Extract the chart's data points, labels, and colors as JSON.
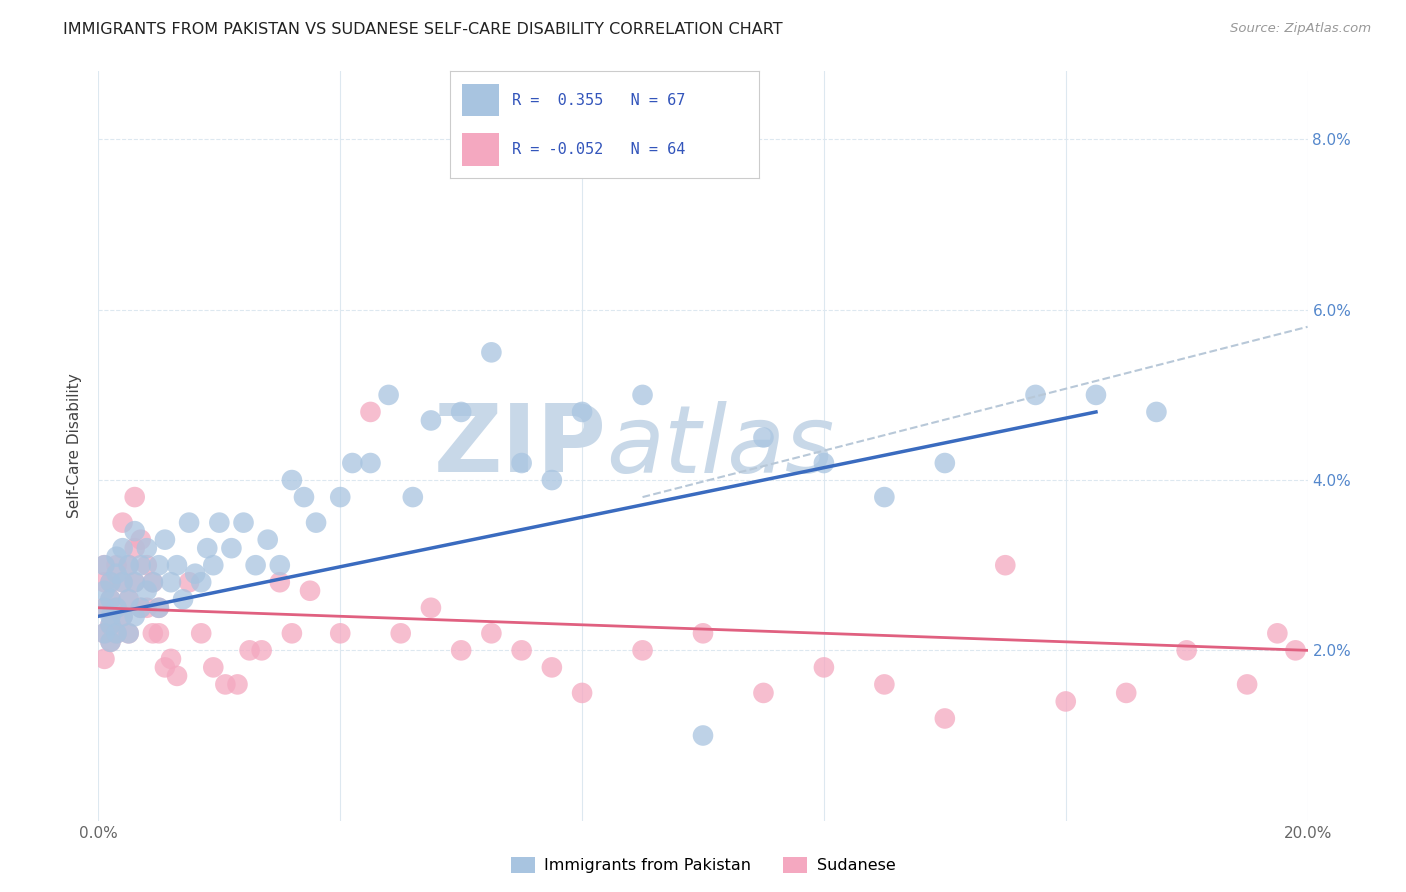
{
  "title": "IMMIGRANTS FROM PAKISTAN VS SUDANESE SELF-CARE DISABILITY CORRELATION CHART",
  "source": "Source: ZipAtlas.com",
  "ylabel_label": "Self-Care Disability",
  "xlim": [
    0.0,
    0.2
  ],
  "ylim": [
    0.0,
    0.088
  ],
  "blue_R": 0.355,
  "blue_N": 67,
  "pink_R": -0.052,
  "pink_N": 64,
  "blue_color": "#a8c4e0",
  "pink_color": "#f4a8c0",
  "blue_line_color": "#3a6bbf",
  "pink_line_color": "#e06080",
  "dash_line_color": "#b8c8d8",
  "watermark_color": "#c8d8e8",
  "background_color": "#ffffff",
  "grid_color": "#dde8f0",
  "legend_text_color": "#3355bb",
  "right_tick_color": "#5588cc",
  "blue_x": [
    0.001,
    0.001,
    0.001,
    0.001,
    0.002,
    0.002,
    0.002,
    0.002,
    0.002,
    0.003,
    0.003,
    0.003,
    0.003,
    0.004,
    0.004,
    0.004,
    0.005,
    0.005,
    0.005,
    0.006,
    0.006,
    0.006,
    0.007,
    0.007,
    0.008,
    0.008,
    0.009,
    0.01,
    0.01,
    0.011,
    0.012,
    0.013,
    0.014,
    0.015,
    0.016,
    0.017,
    0.018,
    0.019,
    0.02,
    0.022,
    0.024,
    0.026,
    0.028,
    0.03,
    0.032,
    0.034,
    0.036,
    0.04,
    0.042,
    0.045,
    0.048,
    0.052,
    0.055,
    0.06,
    0.065,
    0.07,
    0.075,
    0.08,
    0.09,
    0.1,
    0.11,
    0.12,
    0.13,
    0.14,
    0.155,
    0.165,
    0.175
  ],
  "blue_y": [
    0.025,
    0.027,
    0.022,
    0.03,
    0.024,
    0.028,
    0.026,
    0.021,
    0.023,
    0.031,
    0.025,
    0.029,
    0.022,
    0.028,
    0.032,
    0.024,
    0.03,
    0.026,
    0.022,
    0.034,
    0.028,
    0.024,
    0.03,
    0.025,
    0.032,
    0.027,
    0.028,
    0.03,
    0.025,
    0.033,
    0.028,
    0.03,
    0.026,
    0.035,
    0.029,
    0.028,
    0.032,
    0.03,
    0.035,
    0.032,
    0.035,
    0.03,
    0.033,
    0.03,
    0.04,
    0.038,
    0.035,
    0.038,
    0.042,
    0.042,
    0.05,
    0.038,
    0.047,
    0.048,
    0.055,
    0.042,
    0.04,
    0.048,
    0.05,
    0.01,
    0.045,
    0.042,
    0.038,
    0.042,
    0.05,
    0.05,
    0.048
  ],
  "pink_x": [
    0.001,
    0.001,
    0.001,
    0.001,
    0.001,
    0.002,
    0.002,
    0.002,
    0.002,
    0.003,
    0.003,
    0.003,
    0.004,
    0.004,
    0.004,
    0.005,
    0.005,
    0.005,
    0.006,
    0.006,
    0.006,
    0.007,
    0.007,
    0.008,
    0.008,
    0.009,
    0.009,
    0.01,
    0.01,
    0.011,
    0.012,
    0.013,
    0.015,
    0.017,
    0.019,
    0.021,
    0.023,
    0.025,
    0.027,
    0.03,
    0.032,
    0.035,
    0.04,
    0.045,
    0.05,
    0.055,
    0.06,
    0.065,
    0.07,
    0.075,
    0.08,
    0.09,
    0.1,
    0.11,
    0.12,
    0.13,
    0.14,
    0.15,
    0.16,
    0.17,
    0.18,
    0.19,
    0.195,
    0.198
  ],
  "pink_y": [
    0.028,
    0.025,
    0.022,
    0.019,
    0.03,
    0.026,
    0.023,
    0.028,
    0.021,
    0.03,
    0.025,
    0.022,
    0.035,
    0.028,
    0.024,
    0.03,
    0.026,
    0.022,
    0.038,
    0.032,
    0.028,
    0.033,
    0.025,
    0.03,
    0.025,
    0.028,
    0.022,
    0.025,
    0.022,
    0.018,
    0.019,
    0.017,
    0.028,
    0.022,
    0.018,
    0.016,
    0.016,
    0.02,
    0.02,
    0.028,
    0.022,
    0.027,
    0.022,
    0.048,
    0.022,
    0.025,
    0.02,
    0.022,
    0.02,
    0.018,
    0.015,
    0.02,
    0.022,
    0.015,
    0.018,
    0.016,
    0.012,
    0.03,
    0.014,
    0.015,
    0.02,
    0.016,
    0.022,
    0.02
  ]
}
